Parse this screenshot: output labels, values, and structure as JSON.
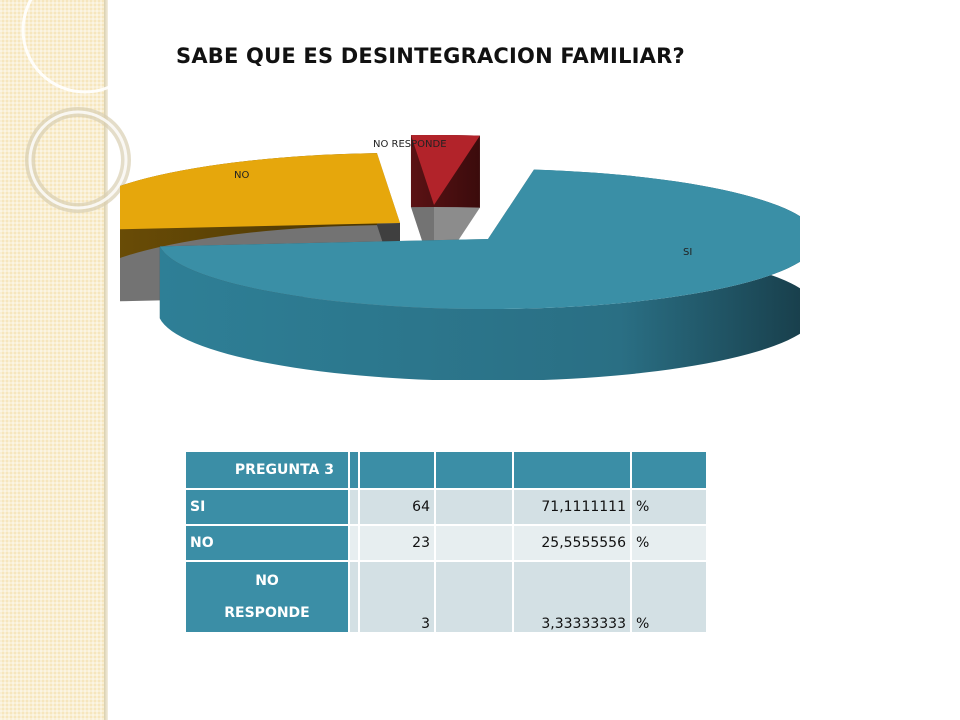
{
  "slide": {
    "title": "SABE QUE ES DESINTEGRACION FAMILIAR?"
  },
  "colors": {
    "si": "#3a8fa6",
    "no": "#e6a70c",
    "no_responde": "#b2232a",
    "table_header": "#3b8ea6"
  },
  "chart_data": {
    "type": "pie",
    "style": "3d-exploded",
    "categories": [
      "SI",
      "NO",
      "NO RESPONDE"
    ],
    "values": [
      64,
      23,
      3
    ],
    "percentages": [
      71.1111111,
      25.5555556,
      3.33333333
    ],
    "title": "",
    "legend": "none"
  },
  "table": {
    "header": "PREGUNTA 3",
    "rows": [
      {
        "label": "SI",
        "count": "64",
        "percent": "71,1111111",
        "symbol": "%"
      },
      {
        "label": "NO",
        "count": "23",
        "percent": "25,5555556",
        "symbol": "%"
      },
      {
        "label_line1": "NO",
        "label_line2": "RESPONDE",
        "count": "3",
        "percent": "3,33333333",
        "symbol": "%"
      }
    ]
  }
}
